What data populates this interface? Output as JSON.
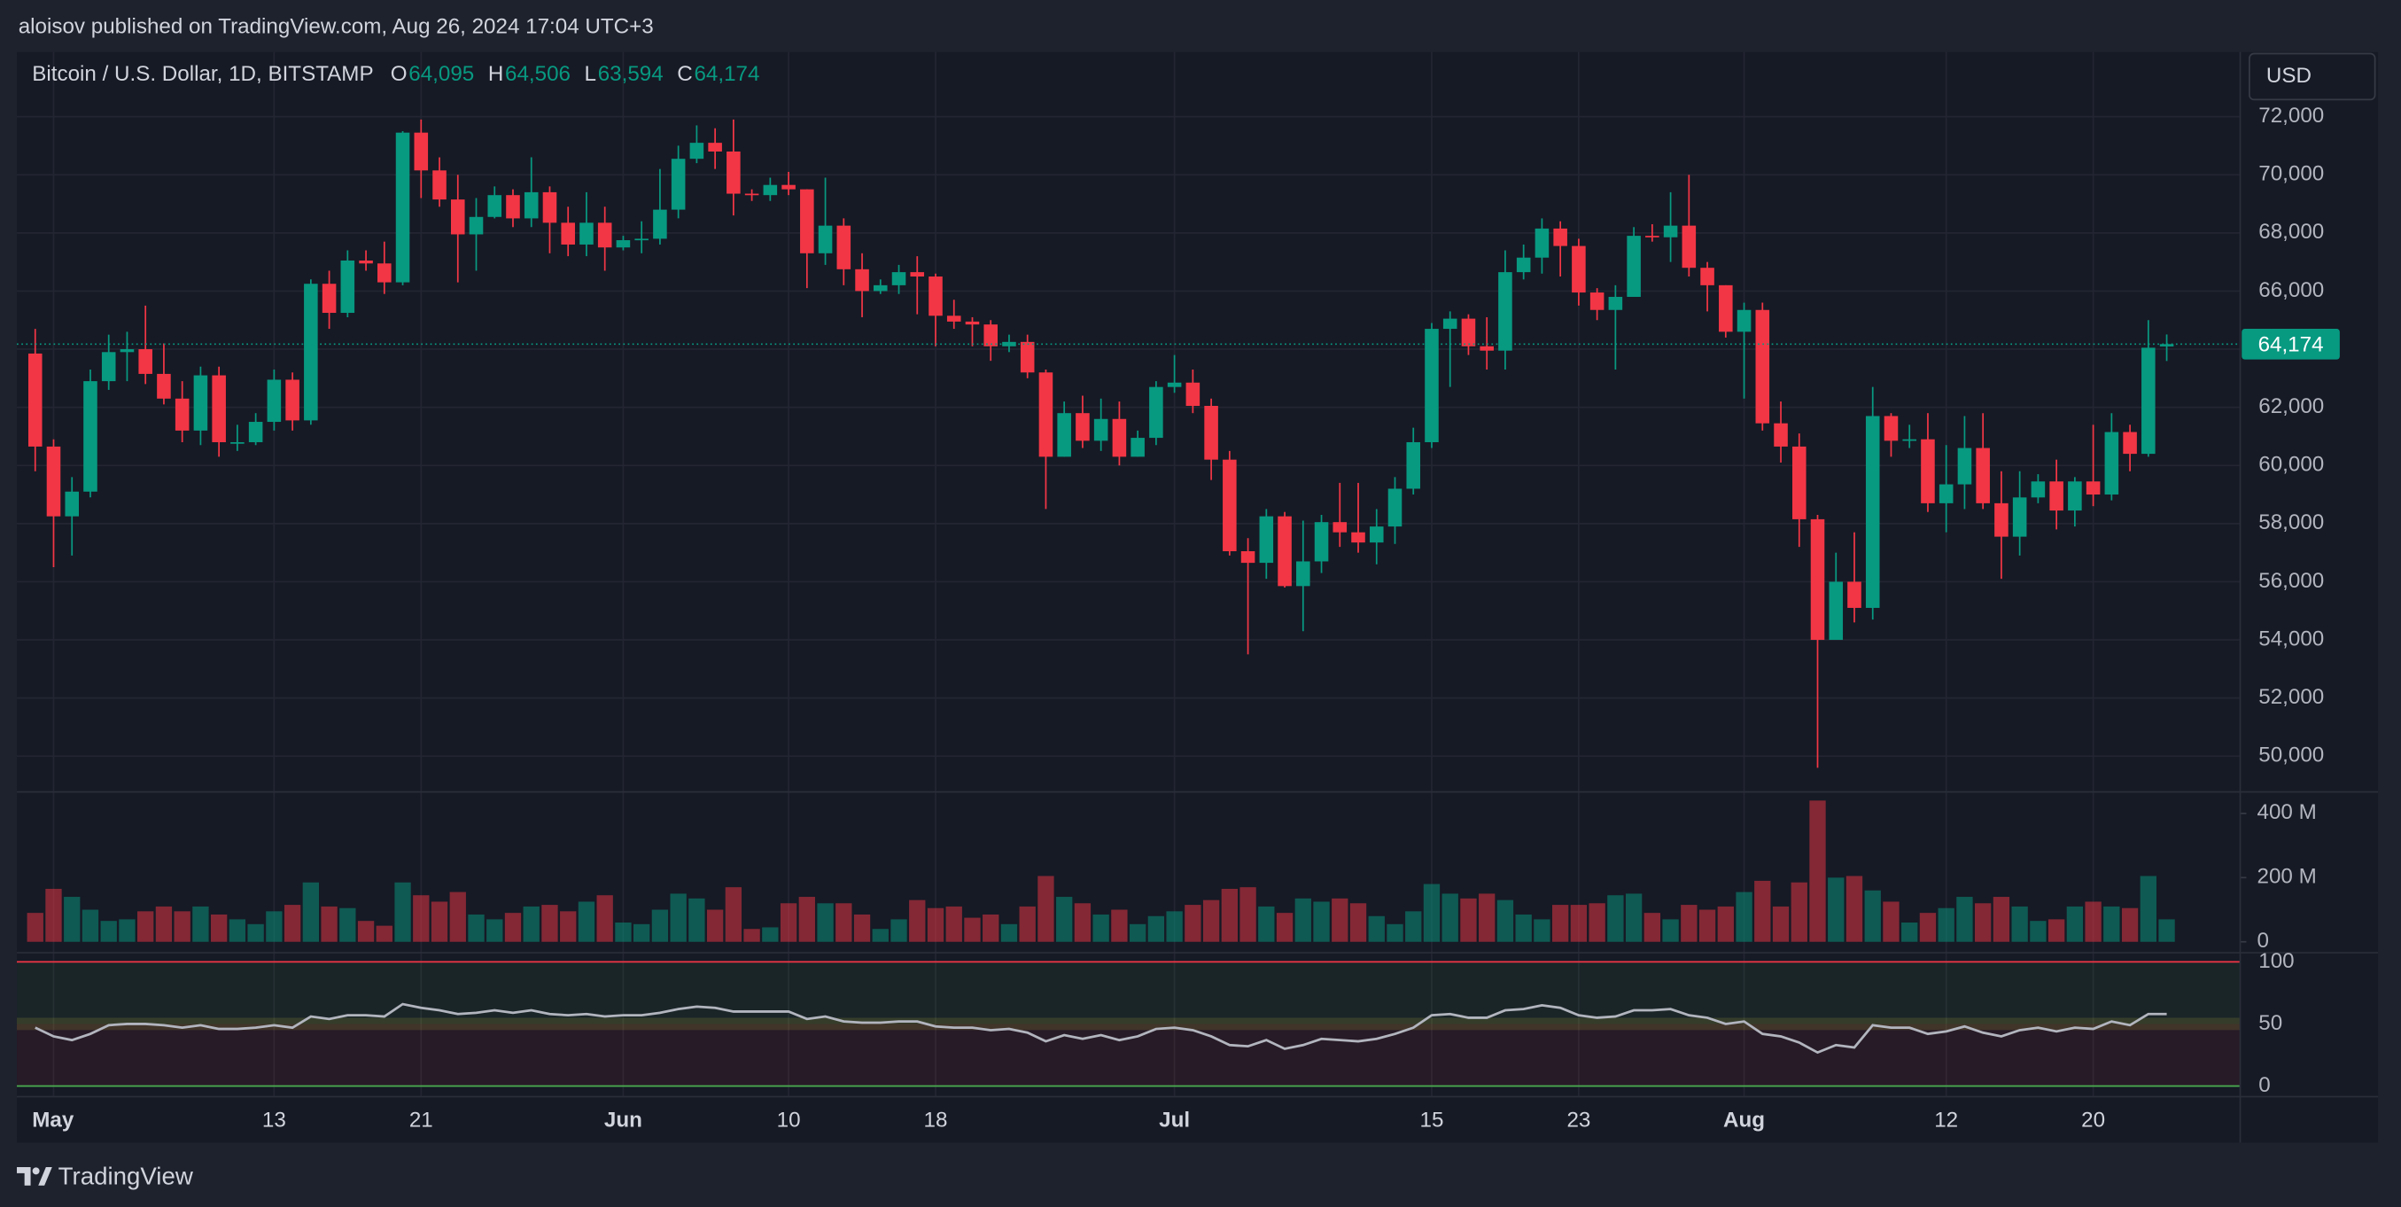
{
  "header": {
    "published": "aloisov published on TradingView.com, Aug 26, 2024 17:04 UTC+3",
    "brand": "TradingView"
  },
  "chart_data": {
    "type": "candlestick",
    "title": "Bitcoin / U.S. Dollar, 1D, BITSTAMP",
    "currency": "USD",
    "legend": [
      {
        "key": "O",
        "value": 64095,
        "label": "64,095"
      },
      {
        "key": "H",
        "value": 64506,
        "label": "64,506"
      },
      {
        "key": "L",
        "value": 63594,
        "label": "63,594"
      },
      {
        "key": "C",
        "value": 64174,
        "label": "64,174"
      }
    ],
    "last_price": {
      "value": 64174,
      "label": "64,174"
    },
    "up_color": "#089981",
    "down_color": "#f23645",
    "open": [
      63850,
      60650,
      58250,
      59100,
      62900,
      63900,
      64000,
      63150,
      62300,
      61200,
      63100,
      60800,
      60800,
      61500,
      62950,
      61550,
      66250,
      65250,
      67050,
      66950,
      66300,
      71450,
      70150,
      69150,
      67950,
      68550,
      69300,
      68500,
      69400,
      68350,
      67600,
      68350,
      67500,
      67750,
      67800,
      68800,
      70550,
      71100,
      70800,
      69350,
      69300,
      69650,
      69500,
      67300,
      68250,
      66750,
      66000,
      66200,
      66650,
      66500,
      65150,
      64950,
      64850,
      64100,
      64250,
      63200,
      60300,
      61800,
      60850,
      61600,
      60300,
      60950,
      62700,
      62850,
      62050,
      60200,
      57050,
      56650,
      58250,
      55850,
      56700,
      58050,
      57700,
      57350,
      57900,
      59200,
      60800,
      64700,
      65050,
      64100,
      63950,
      66650,
      67150,
      68150,
      67550,
      65950,
      65350,
      65800,
      67900,
      67850,
      68250,
      66800,
      66200,
      64600,
      65350,
      61450,
      60650,
      58150,
      54000,
      56000,
      55100,
      61700,
      60850,
      60900,
      58700,
      59350,
      60600,
      58700,
      57550,
      58900,
      59450,
      58450,
      59450,
      59000,
      61150,
      60400,
      64095
    ],
    "high": [
      64700,
      60900,
      59600,
      63300,
      64500,
      64600,
      65500,
      64200,
      62900,
      63400,
      63400,
      61400,
      61800,
      63300,
      63200,
      66400,
      66700,
      67400,
      67400,
      67700,
      71500,
      71900,
      70600,
      70000,
      69200,
      69600,
      69500,
      70600,
      69600,
      68900,
      69400,
      68900,
      67900,
      68400,
      70200,
      71000,
      71700,
      71600,
      71900,
      69500,
      69900,
      70100,
      69500,
      69900,
      68500,
      67300,
      66400,
      66900,
      67200,
      66600,
      65700,
      65100,
      65000,
      64500,
      64500,
      63300,
      62200,
      62400,
      62300,
      62200,
      61200,
      62900,
      63800,
      63300,
      62300,
      60500,
      57500,
      58500,
      58400,
      58100,
      58300,
      59400,
      59400,
      58500,
      59600,
      61300,
      64900,
      65300,
      65200,
      65100,
      67400,
      67600,
      68500,
      68400,
      67800,
      66100,
      66200,
      68200,
      68300,
      69400,
      70000,
      67000,
      66200,
      65600,
      65600,
      62200,
      61100,
      58300,
      57000,
      57700,
      62700,
      61800,
      61400,
      61800,
      60700,
      61700,
      61800,
      59800,
      59800,
      59700,
      60200,
      59600,
      61400,
      61800,
      61400,
      65000,
      64506
    ],
    "low": [
      59800,
      56500,
      56900,
      58900,
      62600,
      62900,
      62800,
      62100,
      60800,
      60700,
      60300,
      60500,
      60700,
      61200,
      61200,
      61400,
      64700,
      65100,
      66700,
      65900,
      66200,
      69200,
      68900,
      66300,
      66700,
      68500,
      68200,
      68200,
      67300,
      67200,
      67200,
      66700,
      67400,
      67300,
      67600,
      68500,
      70400,
      70200,
      68600,
      69100,
      69100,
      69300,
      66100,
      66900,
      66200,
      65100,
      65900,
      65900,
      65200,
      64100,
      64700,
      64100,
      63600,
      63900,
      63000,
      58500,
      60300,
      60600,
      60500,
      60000,
      60300,
      60700,
      62500,
      61800,
      59500,
      56900,
      53500,
      56100,
      55800,
      54300,
      56300,
      57200,
      57000,
      56600,
      57300,
      59000,
      60600,
      62700,
      63800,
      63300,
      63300,
      66400,
      66600,
      66500,
      65500,
      65000,
      63300,
      65800,
      67700,
      67000,
      66500,
      65300,
      64400,
      62300,
      61200,
      60100,
      57200,
      49600,
      54000,
      54600,
      54700,
      60300,
      60600,
      58400,
      57700,
      58500,
      58500,
      56100,
      56900,
      58700,
      57800,
      57900,
      58600,
      58800,
      59800,
      60300,
      63594
    ],
    "close": [
      60650,
      58250,
      59100,
      62900,
      63900,
      64000,
      63150,
      62300,
      61200,
      63100,
      60800,
      60800,
      61500,
      62950,
      61550,
      66250,
      65250,
      67050,
      66950,
      66300,
      71450,
      70150,
      69150,
      67950,
      68550,
      69300,
      68500,
      69400,
      68350,
      67600,
      68350,
      67500,
      67750,
      67800,
      68800,
      70550,
      71100,
      70800,
      69350,
      69300,
      69650,
      69500,
      67300,
      68250,
      66750,
      66000,
      66200,
      66650,
      66500,
      65150,
      64950,
      64850,
      64100,
      64250,
      63200,
      60300,
      61800,
      60850,
      61600,
      60300,
      60950,
      62700,
      62850,
      62050,
      60200,
      57050,
      56650,
      58250,
      55850,
      56700,
      58050,
      57700,
      57350,
      57900,
      59200,
      60800,
      64700,
      65050,
      64100,
      63950,
      66650,
      67150,
      68150,
      67550,
      65950,
      65350,
      65800,
      67900,
      67850,
      68250,
      66800,
      66200,
      64600,
      65350,
      61450,
      60650,
      58150,
      54000,
      56000,
      55100,
      61700,
      60850,
      60900,
      58700,
      59350,
      60600,
      58700,
      57550,
      58900,
      59450,
      58450,
      59450,
      59000,
      61150,
      60400,
      64050,
      64174
    ],
    "xlim": [
      -1,
      120
    ],
    "xticks": [
      {
        "value": 1,
        "label": "May"
      },
      {
        "value": 13,
        "label": "13"
      },
      {
        "value": 21,
        "label": "21"
      },
      {
        "value": 32,
        "label": "Jun"
      },
      {
        "value": 41,
        "label": "10"
      },
      {
        "value": 49,
        "label": "18"
      },
      {
        "value": 62,
        "label": "Jul"
      },
      {
        "value": 76,
        "label": "15"
      },
      {
        "value": 84,
        "label": "23"
      },
      {
        "value": 93,
        "label": "Aug"
      },
      {
        "value": 104,
        "label": "12"
      },
      {
        "value": 112,
        "label": "20"
      }
    ],
    "ylim": [
      48770,
      74220
    ],
    "yticks": [
      {
        "value": 50000,
        "label": "50,000"
      },
      {
        "value": 52000,
        "label": "52,000"
      },
      {
        "value": 54000,
        "label": "54,000"
      },
      {
        "value": 56000,
        "label": "56,000"
      },
      {
        "value": 58000,
        "label": "58,000"
      },
      {
        "value": 60000,
        "label": "60,000"
      },
      {
        "value": 62000,
        "label": "62,000"
      },
      {
        "value": 64000,
        "label": "64,000"
      },
      {
        "value": 66000,
        "label": "66,000"
      },
      {
        "value": 68000,
        "label": "68,000"
      },
      {
        "value": 70000,
        "label": "70,000"
      },
      {
        "value": 72000,
        "label": "72,000"
      }
    ],
    "grid": true,
    "volume": {
      "values": [
        90,
        165,
        140,
        100,
        65,
        70,
        95,
        110,
        95,
        110,
        85,
        70,
        55,
        95,
        115,
        185,
        110,
        105,
        65,
        50,
        185,
        145,
        125,
        155,
        85,
        70,
        90,
        110,
        115,
        95,
        125,
        145,
        60,
        55,
        100,
        150,
        135,
        100,
        170,
        40,
        45,
        120,
        140,
        120,
        120,
        85,
        40,
        70,
        130,
        105,
        110,
        75,
        85,
        55,
        110,
        205,
        140,
        120,
        85,
        100,
        55,
        80,
        95,
        115,
        130,
        165,
        170,
        110,
        90,
        135,
        125,
        135,
        120,
        80,
        55,
        95,
        180,
        150,
        135,
        150,
        130,
        85,
        70,
        115,
        115,
        120,
        145,
        150,
        90,
        70,
        115,
        100,
        110,
        155,
        190,
        110,
        185,
        440,
        200,
        205,
        160,
        125,
        60,
        90,
        105,
        140,
        120,
        140,
        110,
        65,
        70,
        110,
        125,
        110,
        105,
        205,
        70
      ],
      "ylim": [
        -34,
        467
      ],
      "yticks": [
        0,
        {
          "value": 200,
          "label": "200 M"
        },
        {
          "value": 400,
          "label": "400 M"
        }
      ]
    },
    "oscillator": {
      "values": [
        47,
        40,
        37,
        42,
        49,
        50,
        50,
        49,
        47,
        49,
        46,
        46,
        47,
        49,
        47,
        56,
        54,
        57,
        57,
        56,
        66,
        63,
        61,
        58,
        59,
        61,
        59,
        61,
        58,
        57,
        58,
        56,
        57,
        57,
        59,
        62,
        64,
        63,
        60,
        60,
        60,
        60,
        54,
        56,
        52,
        51,
        51,
        52,
        52,
        48,
        47,
        47,
        45,
        46,
        43,
        36,
        41,
        38,
        41,
        37,
        40,
        46,
        47,
        45,
        40,
        33,
        32,
        37,
        30,
        33,
        38,
        37,
        36,
        38,
        42,
        47,
        57,
        58,
        55,
        55,
        61,
        62,
        65,
        63,
        57,
        55,
        56,
        61,
        61,
        62,
        57,
        55,
        50,
        52,
        42,
        40,
        35,
        27,
        33,
        31,
        49,
        47,
        47,
        42,
        44,
        48,
        43,
        40,
        45,
        47,
        44,
        47,
        46,
        52,
        49,
        58,
        58
      ],
      "color": "#b2b5be",
      "ylim": [
        -8.6,
        107.4
      ],
      "yticks": [
        0,
        50,
        100
      ]
    }
  }
}
